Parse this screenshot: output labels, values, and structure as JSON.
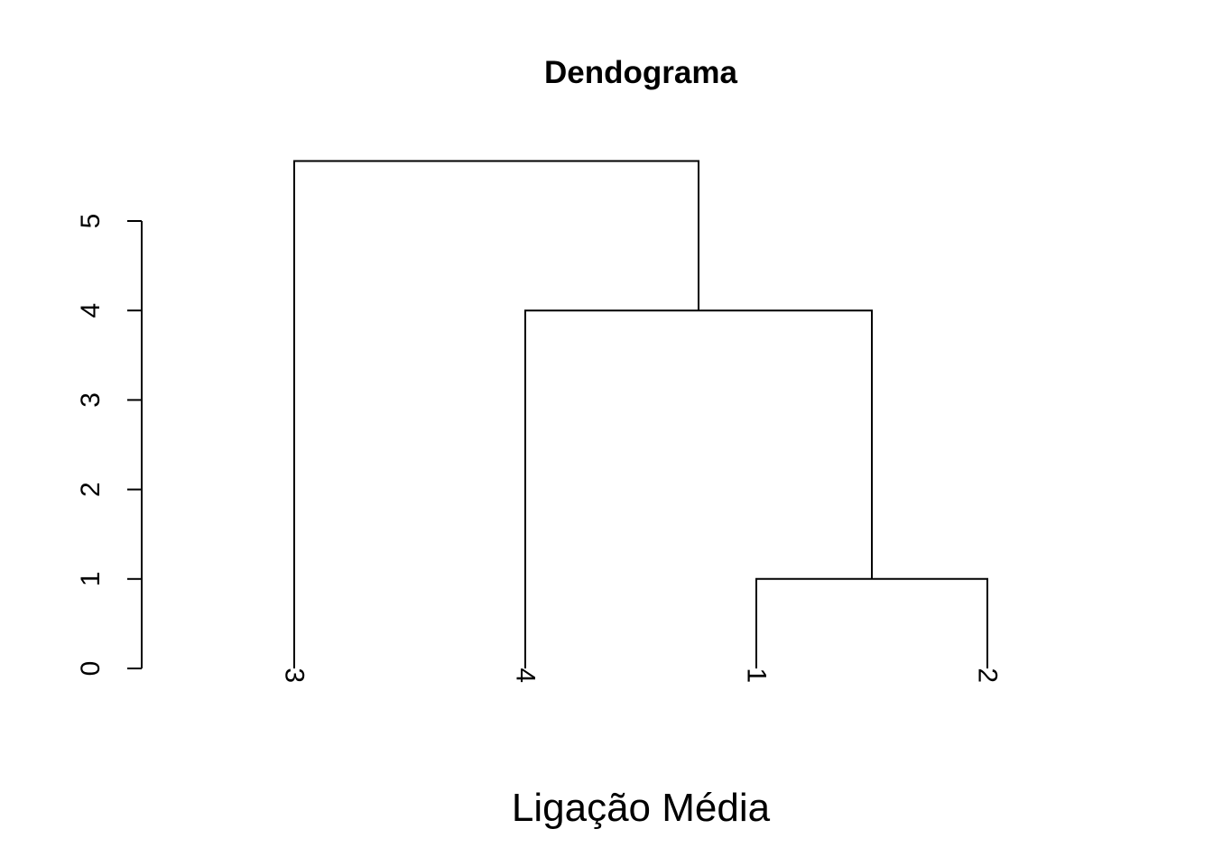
{
  "chart_data": {
    "type": "dendrogram",
    "title": "Dendograma",
    "xlabel": "Ligação Média",
    "ylabel": "",
    "ylim": [
      0,
      5
    ],
    "yticks": [
      0,
      1,
      2,
      3,
      4,
      5
    ],
    "leaves": [
      "3",
      "4",
      "1",
      "2"
    ],
    "merges": [
      {
        "left": "1",
        "right": "2",
        "height": 1.0
      },
      {
        "left": "4",
        "right": "1,2",
        "height": 4.0
      },
      {
        "left": "3",
        "right": "4,1,2",
        "height": 5.67
      }
    ]
  }
}
